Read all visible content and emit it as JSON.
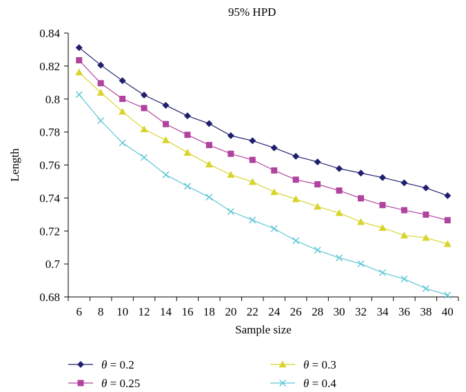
{
  "chart_data": {
    "type": "line",
    "title": "95% HPD",
    "xlabel": "Sample size",
    "ylabel": "Length",
    "x": [
      6,
      8,
      10,
      12,
      14,
      16,
      18,
      20,
      22,
      24,
      26,
      28,
      30,
      32,
      34,
      36,
      38,
      40
    ],
    "x_tick_labels": [
      "6",
      "8",
      "10",
      "12",
      "14",
      "16",
      "18",
      "20",
      "22",
      "24",
      "26",
      "28",
      "30",
      "32",
      "34",
      "36",
      "38",
      "40"
    ],
    "ylim": [
      0.68,
      0.84
    ],
    "y_ticks": [
      0.68,
      0.7,
      0.72,
      0.74,
      0.76,
      0.78,
      0.8,
      0.82,
      0.84
    ],
    "y_tick_labels": [
      "0.68",
      "0.7",
      "0.72",
      "0.74",
      "0.76",
      "0.78",
      "0.8",
      "0.82",
      "0.84"
    ],
    "grid": false,
    "legend_position": "bottom",
    "series": [
      {
        "name": "θ = 0.2",
        "name_var": "θ",
        "name_rest": " = 0.2",
        "color": "#1f1f6e",
        "marker": "diamond",
        "values": [
          0.8312,
          0.8206,
          0.8111,
          0.8024,
          0.7962,
          0.7898,
          0.7851,
          0.7778,
          0.7747,
          0.7704,
          0.7653,
          0.7619,
          0.7578,
          0.7551,
          0.7524,
          0.7492,
          0.7461,
          0.7414
        ]
      },
      {
        "name": "θ = 0.25",
        "name_var": "θ",
        "name_rest": " = 0.25",
        "color": "#b0439e",
        "marker": "square",
        "values": [
          0.8235,
          0.8096,
          0.8001,
          0.7945,
          0.7848,
          0.7783,
          0.7721,
          0.7668,
          0.7631,
          0.7567,
          0.7511,
          0.7483,
          0.7445,
          0.7398,
          0.7357,
          0.7326,
          0.7299,
          0.7265
        ]
      },
      {
        "name": "θ = 0.3",
        "name_var": "θ",
        "name_rest": " = 0.3",
        "color": "#d8d42a",
        "marker": "triangle",
        "values": [
          0.8162,
          0.8039,
          0.7924,
          0.7817,
          0.7751,
          0.7675,
          0.7604,
          0.7541,
          0.7498,
          0.7436,
          0.7393,
          0.7348,
          0.7309,
          0.7255,
          0.7219,
          0.7173,
          0.7159,
          0.7121
        ]
      },
      {
        "name": "θ = 0.4",
        "name_var": "θ",
        "name_rest": " = 0.4",
        "color": "#5bc6d6",
        "marker": "x",
        "values": [
          0.8027,
          0.7869,
          0.7734,
          0.7646,
          0.7541,
          0.7471,
          0.7405,
          0.7318,
          0.7266,
          0.7214,
          0.7141,
          0.7084,
          0.7037,
          0.7001,
          0.6947,
          0.6909,
          0.6851,
          0.6811
        ]
      }
    ]
  }
}
